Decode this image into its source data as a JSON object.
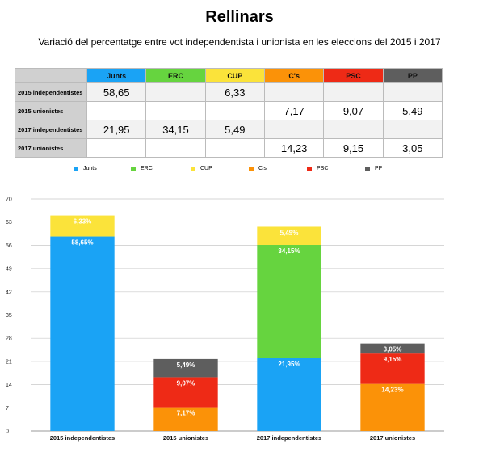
{
  "title": "Rellinars",
  "subtitle": "Variació del percentatge entre vot independentista i unionista en les eleccions del 2015 i 2017",
  "colors": {
    "Junts": "#1aa3f5",
    "ERC": "#66d43f",
    "CUP": "#fbe33a",
    "C's": "#fb9208",
    "PSC": "#ee2a16",
    "PP": "#5e5e5e"
  },
  "table": {
    "headers": [
      "Junts",
      "ERC",
      "CUP",
      "C's",
      "PSC",
      "PP"
    ],
    "rows": [
      {
        "label": "2015 independentistes",
        "cells": [
          "58,65",
          "",
          "6,33",
          "",
          "",
          ""
        ]
      },
      {
        "label": "2015 unionistes",
        "cells": [
          "",
          "",
          "",
          "7,17",
          "9,07",
          "5,49"
        ]
      },
      {
        "label": "2017 independentistes",
        "cells": [
          "21,95",
          "34,15",
          "5,49",
          "",
          "",
          ""
        ]
      },
      {
        "label": "2017 unionistes",
        "cells": [
          "",
          "",
          "",
          "14,23",
          "9,15",
          "3,05"
        ]
      }
    ]
  },
  "chart_data": {
    "type": "bar",
    "stacked": true,
    "categories": [
      "2015 independentistes",
      "2015 unionistes",
      "2017 independentistes",
      "2017 unionistes"
    ],
    "series": [
      {
        "name": "Junts",
        "values": [
          58.65,
          0,
          21.95,
          0
        ],
        "labels": [
          "58,65%",
          "",
          "21,95%",
          ""
        ]
      },
      {
        "name": "ERC",
        "values": [
          0,
          0,
          34.15,
          0
        ],
        "labels": [
          "",
          "",
          "34,15%",
          ""
        ]
      },
      {
        "name": "CUP",
        "values": [
          6.33,
          0,
          5.49,
          0
        ],
        "labels": [
          "6,33%",
          "",
          "5,49%",
          ""
        ]
      },
      {
        "name": "C's",
        "values": [
          0,
          7.17,
          0,
          14.23
        ],
        "labels": [
          "",
          "7,17%",
          "",
          "14,23%"
        ]
      },
      {
        "name": "PSC",
        "values": [
          0,
          9.07,
          0,
          9.15
        ],
        "labels": [
          "",
          "9,07%",
          "",
          "9,15%"
        ]
      },
      {
        "name": "PP",
        "values": [
          0,
          5.49,
          0,
          3.05
        ],
        "labels": [
          "",
          "5,49%",
          "",
          "3,05%"
        ]
      }
    ],
    "ylim": [
      0,
      70
    ],
    "yticks": [
      0,
      7,
      14,
      21,
      28,
      35,
      42,
      49,
      56,
      63,
      70
    ],
    "grid": true,
    "legend": "top"
  }
}
